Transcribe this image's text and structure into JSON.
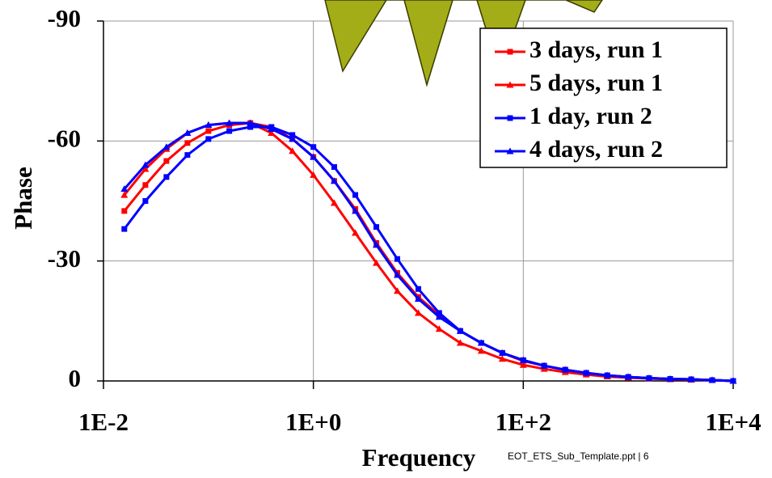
{
  "chart_data": {
    "type": "line",
    "xlabel": "Frequency",
    "ylabel": "Phase",
    "x": [
      0.0158,
      0.0251,
      0.0398,
      0.0631,
      0.1,
      0.158,
      0.251,
      0.398,
      0.631,
      1,
      1.58,
      2.51,
      3.98,
      6.31,
      10,
      15.8,
      25.1,
      39.8,
      63.1,
      100,
      158,
      251,
      398,
      631,
      1000,
      1580,
      2510,
      3980,
      6310,
      10000
    ],
    "series": [
      {
        "name": "3 days, run 1",
        "color": "#ff0000",
        "marker": "square",
        "values": [
          -42.5,
          -49,
          -55,
          -59.5,
          -62.5,
          -64,
          -64.5,
          -63.5,
          -60.5,
          -56,
          -50,
          -43,
          -34.5,
          -27,
          -21,
          -16.5,
          -12.5,
          -9.5,
          -7,
          -5,
          -3.8,
          -2.8,
          -2,
          -1.4,
          -1,
          -0.7,
          -0.5,
          -0.4,
          -0.2,
          0
        ]
      },
      {
        "name": "5 days, run 1",
        "color": "#ff0000",
        "marker": "triangle",
        "values": [
          -46.5,
          -53,
          -58,
          -62,
          -64,
          -64.5,
          -64.5,
          -62,
          -57.5,
          -51.5,
          -44.5,
          -37,
          -29.5,
          -22.5,
          -17,
          -13,
          -9.5,
          -7.5,
          -5.5,
          -4,
          -3,
          -2.2,
          -1.6,
          -1.1,
          -0.8,
          -0.6,
          -0.4,
          -0.3,
          -0.2,
          0
        ]
      },
      {
        "name": "1 day, run 2",
        "color": "#0000ff",
        "marker": "square",
        "values": [
          -38,
          -45,
          -51,
          -56.5,
          -60.5,
          -62.5,
          -63.5,
          -63.5,
          -61.5,
          -58.5,
          -53.5,
          -46.5,
          -38.5,
          -30.5,
          -23,
          -17,
          -12.5,
          -9.5,
          -7,
          -5.2,
          -3.8,
          -2.8,
          -2,
          -1.4,
          -1,
          -0.7,
          -0.5,
          -0.4,
          -0.2,
          0
        ]
      },
      {
        "name": "4 days, run 2",
        "color": "#0000ff",
        "marker": "triangle",
        "values": [
          -48,
          -54,
          -58.5,
          -62,
          -64,
          -64.5,
          -64.5,
          -63,
          -60.5,
          -56,
          -50,
          -42.5,
          -34,
          -26.5,
          -20.5,
          -16,
          -12.5,
          -9.5,
          -7,
          -5.2,
          -3.8,
          -2.8,
          -2,
          -1.4,
          -1,
          -0.7,
          -0.5,
          -0.4,
          -0.2,
          0
        ]
      }
    ],
    "xscale": "log",
    "xlim": [
      0.01,
      10000
    ],
    "xticks": [
      {
        "value": 0.01,
        "label": "1E-2"
      },
      {
        "value": 1,
        "label": "1E+0"
      },
      {
        "value": 100,
        "label": "1E+2"
      },
      {
        "value": 10000,
        "label": "1E+4"
      }
    ],
    "ylim": [
      0,
      -90
    ],
    "yticks": [
      0,
      -30,
      -60,
      -90
    ],
    "grid": true,
    "legend": "upper right"
  },
  "footer": "EOT_ETS_Sub_Template.ppt | 6"
}
